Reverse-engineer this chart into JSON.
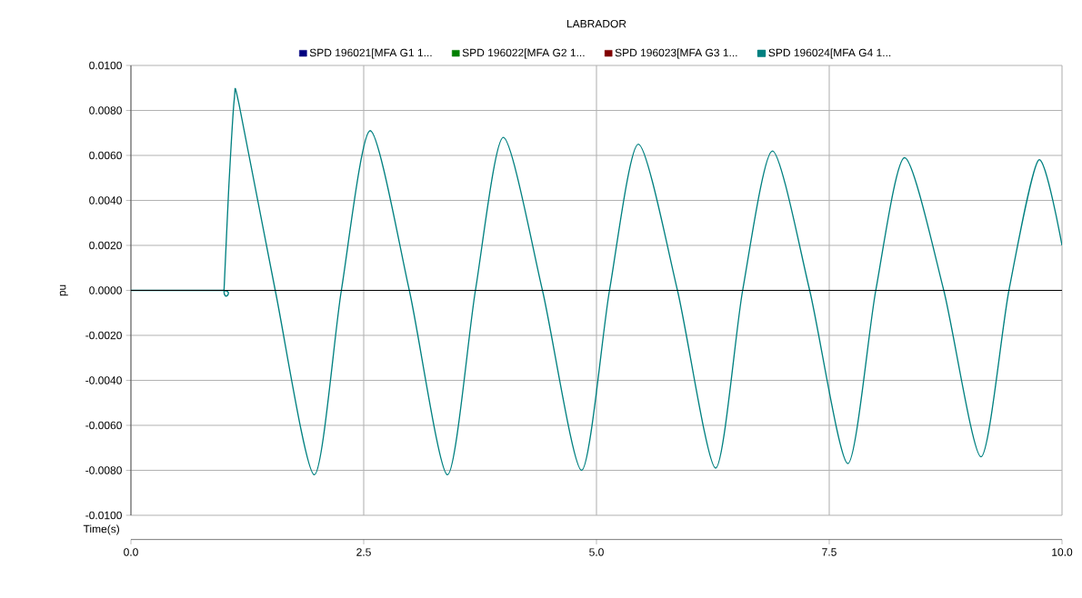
{
  "chart_data": {
    "type": "line",
    "title": "LABRADOR",
    "xlabel": "Time(s)",
    "ylabel": "pu",
    "xlim": [
      0,
      10
    ],
    "ylim": [
      -0.01,
      0.01
    ],
    "xticks": [
      {
        "value": 0,
        "label": "0.0"
      },
      {
        "value": 2.5,
        "label": "2.5"
      },
      {
        "value": 5,
        "label": "5.0"
      },
      {
        "value": 7.5,
        "label": "7.5"
      },
      {
        "value": 10,
        "label": "10.0"
      }
    ],
    "yticks": [
      {
        "value": -0.01,
        "label": "-0.0100"
      },
      {
        "value": -0.008,
        "label": "-0.0080"
      },
      {
        "value": -0.006,
        "label": "-0.0060"
      },
      {
        "value": -0.004,
        "label": "-0.0040"
      },
      {
        "value": -0.002,
        "label": "-0.0020"
      },
      {
        "value": 0,
        "label": "0.0000"
      },
      {
        "value": 0.002,
        "label": "0.0020"
      },
      {
        "value": 0.004,
        "label": "0.0040"
      },
      {
        "value": 0.006,
        "label": "0.0060"
      },
      {
        "value": 0.008,
        "label": "0.0080"
      },
      {
        "value": 0.01,
        "label": "0.0100"
      }
    ],
    "grid": true,
    "legend": "top",
    "marker": "none",
    "line_style": "solid",
    "ref_lines": [
      {
        "axis": "y",
        "value": 0,
        "color": "#000000"
      }
    ],
    "x": [
      0,
      0.99,
      1.0,
      1.05,
      1.11,
      1.16,
      1.55,
      1.97,
      2.26,
      2.57,
      2.99,
      3.4,
      3.7,
      4.0,
      4.42,
      4.84,
      5.14,
      5.45,
      5.87,
      6.28,
      6.57,
      6.89,
      7.29,
      7.7,
      8.0,
      8.31,
      8.73,
      9.13,
      9.43,
      9.75,
      10.0
    ],
    "series": [
      {
        "name": "SPD 196021[MFA G1 1...",
        "color": "#000080",
        "values": [
          null,
          null,
          null,
          null,
          null,
          null,
          null,
          null,
          null,
          null,
          null,
          null,
          null,
          null,
          null,
          null,
          null,
          null,
          null,
          null,
          null,
          null,
          null,
          null,
          null,
          null,
          null,
          null,
          null,
          null,
          null
        ]
      },
      {
        "name": "SPD 196022[MFA G2 1...",
        "color": "#008000",
        "values": [
          null,
          null,
          null,
          null,
          null,
          null,
          null,
          null,
          null,
          null,
          null,
          null,
          null,
          null,
          null,
          null,
          null,
          null,
          null,
          null,
          null,
          null,
          null,
          null,
          null,
          null,
          null,
          null,
          null,
          null,
          null
        ]
      },
      {
        "name": "SPD 196023[MFA G3 1...",
        "color": "#800000",
        "values": [
          null,
          null,
          null,
          null,
          null,
          null,
          null,
          null,
          null,
          null,
          null,
          null,
          null,
          null,
          null,
          null,
          null,
          null,
          null,
          null,
          null,
          null,
          null,
          null,
          null,
          null,
          null,
          null,
          null,
          null,
          null
        ]
      },
      {
        "name": "SPD 196024[MFA G4 1...",
        "color": "#008080",
        "values": [
          0,
          0,
          0,
          0.0045,
          0.0085,
          0.0083,
          0,
          -0.0082,
          0,
          0.0071,
          0,
          -0.0082,
          0,
          0.0068,
          0,
          -0.008,
          0,
          0.0065,
          0,
          -0.0079,
          0,
          0.0062,
          0,
          -0.0077,
          0,
          0.0059,
          0,
          -0.0074,
          0,
          0.0058,
          0.002
        ]
      }
    ]
  }
}
